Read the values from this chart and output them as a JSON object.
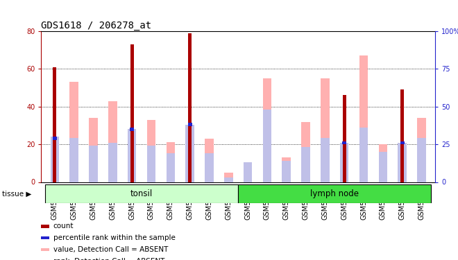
{
  "title": "GDS1618 / 206278_at",
  "samples": [
    "GSM51381",
    "GSM51382",
    "GSM51383",
    "GSM51384",
    "GSM51385",
    "GSM51386",
    "GSM51387",
    "GSM51388",
    "GSM51389",
    "GSM51390",
    "GSM51371",
    "GSM51372",
    "GSM51373",
    "GSM51374",
    "GSM51375",
    "GSM51376",
    "GSM51377",
    "GSM51378",
    "GSM51379",
    "GSM51380"
  ],
  "count": [
    61,
    0,
    0,
    0,
    73,
    0,
    0,
    79,
    0,
    0,
    0,
    0,
    0,
    0,
    0,
    46,
    0,
    0,
    49,
    0
  ],
  "percentile": [
    29,
    0,
    0,
    0,
    35,
    0,
    0,
    38,
    0,
    0,
    0,
    0,
    0,
    0,
    0,
    26,
    0,
    0,
    26,
    0
  ],
  "absent_value": [
    0,
    53,
    34,
    43,
    0,
    33,
    21,
    0,
    23,
    5,
    10,
    55,
    13,
    32,
    55,
    0,
    67,
    20,
    0,
    34
  ],
  "absent_rank": [
    30,
    29,
    24,
    26,
    35,
    24,
    19,
    38,
    19,
    3,
    13,
    48,
    14,
    23,
    29,
    26,
    36,
    20,
    26,
    29
  ],
  "ylim_left": [
    0,
    80
  ],
  "ylim_right": [
    0,
    100
  ],
  "color_count": "#aa0000",
  "color_percentile": "#2222cc",
  "color_absent_value": "#ffb0b0",
  "color_absent_rank": "#c0c0e8",
  "color_tonsil_light": "#ccffcc",
  "color_tonsil_dark": "#55ee55",
  "color_lymph": "#44dd44",
  "color_bg_tissue": "#d0d0d0",
  "title_fontsize": 10,
  "tick_fontsize": 7,
  "legend_fontsize": 7.5
}
